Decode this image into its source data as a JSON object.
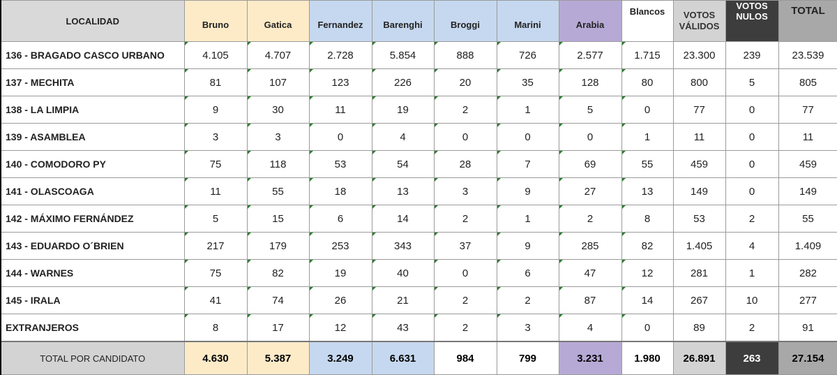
{
  "headers": {
    "localidad": "LOCALIDAD",
    "candidates": [
      "Bruno",
      "Gatica",
      "Fernandez",
      "Barenghi",
      "Broggi",
      "Marini",
      "Arabia"
    ],
    "blancos": "Blancos",
    "votos_validos": "VOTOS VÁLIDOS",
    "votos_nulos": "VOTOS NULOS",
    "total": "TOTAL"
  },
  "colors": {
    "bruno_gatica": "#fdebc8",
    "fernandez_barenghi": "#c6d8ef",
    "broggi_marini": "#c6d8ef",
    "arabia": "#b7a9d6",
    "white": "#ffffff",
    "grey": "#d3d3d3",
    "dark": "#3d3d3d",
    "total_grey": "#a8a8a8"
  },
  "rows": [
    {
      "name": "136 - BRAGADO CASCO URBANO",
      "values": [
        "4.105",
        "4.707",
        "2.728",
        "5.854",
        "888",
        "726",
        "2.577",
        "1.715",
        "23.300",
        "239",
        "23.539"
      ]
    },
    {
      "name": "137 - MECHITA",
      "values": [
        "81",
        "107",
        "123",
        "226",
        "20",
        "35",
        "128",
        "80",
        "800",
        "5",
        "805"
      ]
    },
    {
      "name": "138 - LA LIMPIA",
      "values": [
        "9",
        "30",
        "11",
        "19",
        "2",
        "1",
        "5",
        "0",
        "77",
        "0",
        "77"
      ]
    },
    {
      "name": "139 - ASAMBLEA",
      "values": [
        "3",
        "3",
        "0",
        "4",
        "0",
        "0",
        "0",
        "1",
        "11",
        "0",
        "11"
      ]
    },
    {
      "name": "140 - COMODORO PY",
      "values": [
        "75",
        "118",
        "53",
        "54",
        "28",
        "7",
        "69",
        "55",
        "459",
        "0",
        "459"
      ]
    },
    {
      "name": "141 - OLASCOAGA",
      "values": [
        "11",
        "55",
        "18",
        "13",
        "3",
        "9",
        "27",
        "13",
        "149",
        "0",
        "149"
      ]
    },
    {
      "name": "142 - MÁXIMO FERNÁNDEZ",
      "values": [
        "5",
        "15",
        "6",
        "14",
        "2",
        "1",
        "2",
        "8",
        "53",
        "2",
        "55"
      ]
    },
    {
      "name": "143 - EDUARDO O´BRIEN",
      "values": [
        "217",
        "179",
        "253",
        "343",
        "37",
        "9",
        "285",
        "82",
        "1.405",
        "4",
        "1.409"
      ]
    },
    {
      "name": "144 - WARNES",
      "values": [
        "75",
        "82",
        "19",
        "40",
        "0",
        "6",
        "47",
        "12",
        "281",
        "1",
        "282"
      ]
    },
    {
      "name": "145 - IRALA",
      "values": [
        "41",
        "74",
        "26",
        "21",
        "2",
        "2",
        "87",
        "14",
        "267",
        "10",
        "277"
      ]
    },
    {
      "name": "EXTRANJEROS",
      "values": [
        "8",
        "17",
        "12",
        "43",
        "2",
        "3",
        "4",
        "0",
        "89",
        "2",
        "91"
      ]
    }
  ],
  "totals": {
    "label": "TOTAL POR CANDIDATO",
    "values": [
      "4.630",
      "5.387",
      "3.249",
      "6.631",
      "984",
      "799",
      "3.231",
      "1.980",
      "26.891",
      "263",
      "27.154"
    ]
  }
}
